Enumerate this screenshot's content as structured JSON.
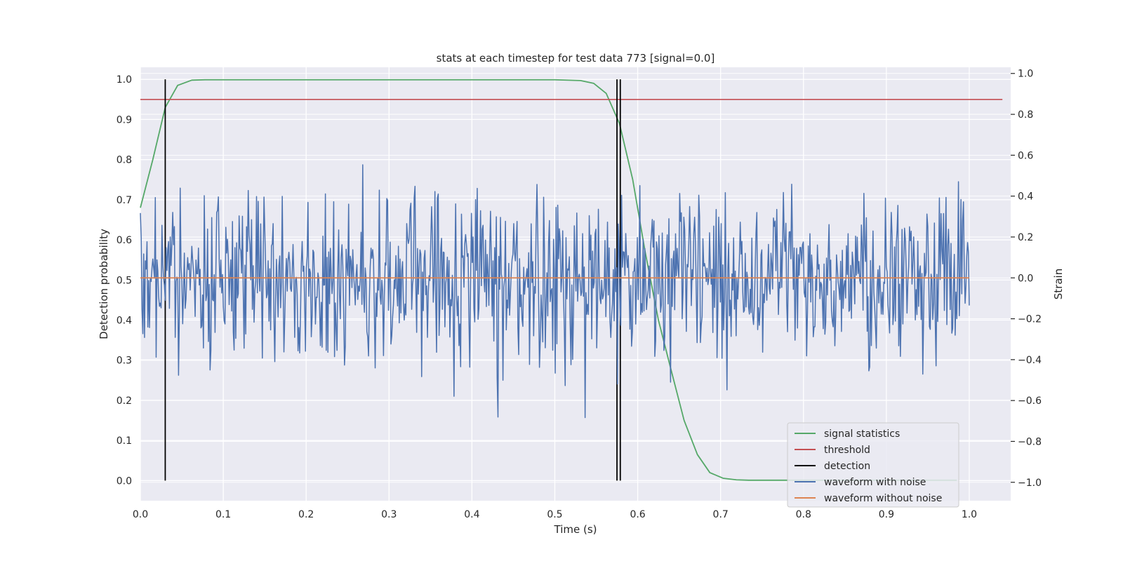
{
  "chart_data": {
    "type": "line",
    "title": "stats at each timestep for test data 773 [signal=0.0]",
    "xlabel": "Time (s)",
    "ylabel": "Detection probability",
    "y2label": "Strain",
    "xlim": [
      0.0,
      1.05
    ],
    "ylim": [
      -0.05,
      1.03
    ],
    "y2lim": [
      -1.09,
      1.03
    ],
    "xticks": [
      "0.0",
      "0.1",
      "0.2",
      "0.3",
      "0.4",
      "0.5",
      "0.6",
      "0.7",
      "0.8",
      "0.9",
      "1.0"
    ],
    "yticks": [
      "0.0",
      "0.1",
      "0.2",
      "0.3",
      "0.4",
      "0.5",
      "0.6",
      "0.7",
      "0.8",
      "0.9",
      "1.0"
    ],
    "y2ticks": [
      "−1.0",
      "−0.8",
      "−0.6",
      "−0.4",
      "−0.2",
      "0.0",
      "0.2",
      "0.4",
      "0.6",
      "0.8",
      "1.0"
    ],
    "grid": true,
    "legend_position": "lower-right",
    "colors": {
      "background": "#eaeaf2",
      "grid": "#ffffff",
      "signal": "#55a868",
      "threshold": "#c44e52",
      "detection": "#000000",
      "noisy": "#4c72b0",
      "clean": "#dd8452"
    },
    "legend": [
      {
        "label": "signal statistics",
        "color": "#55a868"
      },
      {
        "label": "threshold",
        "color": "#c44e52"
      },
      {
        "label": "detection",
        "color": "#000000"
      },
      {
        "label": "waveform with noise",
        "color": "#4c72b0"
      },
      {
        "label": "waveform without noise",
        "color": "#dd8452"
      }
    ],
    "series": [
      {
        "name": "signal statistics",
        "axis": "left",
        "x": [
          0.0,
          0.015,
          0.03,
          0.045,
          0.062,
          0.078,
          0.094,
          0.2,
          0.3,
          0.4,
          0.5,
          0.531,
          0.547,
          0.562,
          0.578,
          0.594,
          0.609,
          0.625,
          0.641,
          0.656,
          0.672,
          0.687,
          0.703,
          0.719,
          0.734,
          0.75,
          0.8,
          0.9,
          0.985
        ],
        "values": [
          0.68,
          0.8,
          0.93,
          0.985,
          0.998,
          0.999,
          0.999,
          0.999,
          0.999,
          0.999,
          0.999,
          0.997,
          0.99,
          0.965,
          0.89,
          0.75,
          0.57,
          0.4,
          0.27,
          0.15,
          0.065,
          0.02,
          0.006,
          0.002,
          0.001,
          0.001,
          0.001,
          0.001,
          0.001
        ]
      },
      {
        "name": "threshold",
        "axis": "left",
        "x": [
          0.0,
          1.04
        ],
        "values": [
          0.95,
          0.95
        ]
      },
      {
        "name": "waveform without noise",
        "axis": "right",
        "x": [
          0.0,
          1.0
        ],
        "values": [
          0.0,
          0.0
        ]
      },
      {
        "name": "waveform with noise",
        "axis": "right",
        "n_points": 1000,
        "x_range": [
          0.0,
          1.0
        ],
        "values": []
      }
    ],
    "detections": [
      0.03,
      0.575,
      0.579
    ]
  }
}
